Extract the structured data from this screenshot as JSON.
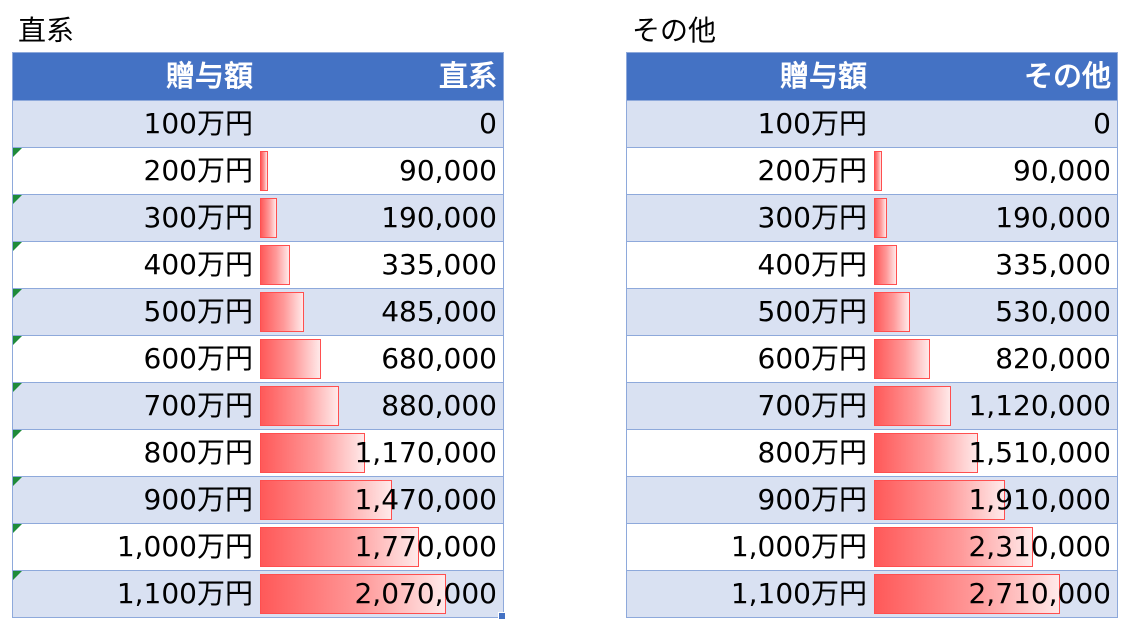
{
  "blocks": [
    {
      "title": "直系",
      "header": {
        "col1": "贈与額",
        "col2": "直系"
      },
      "max_value": 2070000,
      "rows": [
        {
          "amount": "100万円",
          "value_text": "0",
          "value": 0
        },
        {
          "amount": "200万円",
          "value_text": "90,000",
          "value": 90000
        },
        {
          "amount": "300万円",
          "value_text": "190,000",
          "value": 190000
        },
        {
          "amount": "400万円",
          "value_text": "335,000",
          "value": 335000
        },
        {
          "amount": "500万円",
          "value_text": "485,000",
          "value": 485000
        },
        {
          "amount": "600万円",
          "value_text": "680,000",
          "value": 680000
        },
        {
          "amount": "700万円",
          "value_text": "880,000",
          "value": 880000
        },
        {
          "amount": "800万円",
          "value_text": "1,170,000",
          "value": 1170000
        },
        {
          "amount": "900万円",
          "value_text": "1,470,000",
          "value": 1470000
        },
        {
          "amount": "1,000万円",
          "value_text": "1,770,000",
          "value": 1770000
        },
        {
          "amount": "1,100万円",
          "value_text": "2,070,000",
          "value": 2070000
        }
      ]
    },
    {
      "title": "その他",
      "header": {
        "col1": "贈与額",
        "col2": "その他"
      },
      "max_value": 2710000,
      "rows": [
        {
          "amount": "100万円",
          "value_text": "0",
          "value": 0
        },
        {
          "amount": "200万円",
          "value_text": "90,000",
          "value": 90000
        },
        {
          "amount": "300万円",
          "value_text": "190,000",
          "value": 190000
        },
        {
          "amount": "400万円",
          "value_text": "335,000",
          "value": 335000
        },
        {
          "amount": "500万円",
          "value_text": "530,000",
          "value": 530000
        },
        {
          "amount": "600万円",
          "value_text": "820,000",
          "value": 820000
        },
        {
          "amount": "700万円",
          "value_text": "1,120,000",
          "value": 1120000
        },
        {
          "amount": "800万円",
          "value_text": "1,510,000",
          "value": 1510000
        },
        {
          "amount": "900万円",
          "value_text": "1,910,000",
          "value": 1910000
        },
        {
          "amount": "1,000万円",
          "value_text": "2,310,000",
          "value": 2310000
        },
        {
          "amount": "1,100万円",
          "value_text": "2,710,000",
          "value": 2710000
        }
      ]
    }
  ],
  "colors": {
    "header_bg": "#4472c4",
    "band_odd": "#d9e1f2",
    "bar_start": "#ff5959",
    "bar_border": "#ff4f4f",
    "error_indicator": "#1f8b3a"
  }
}
